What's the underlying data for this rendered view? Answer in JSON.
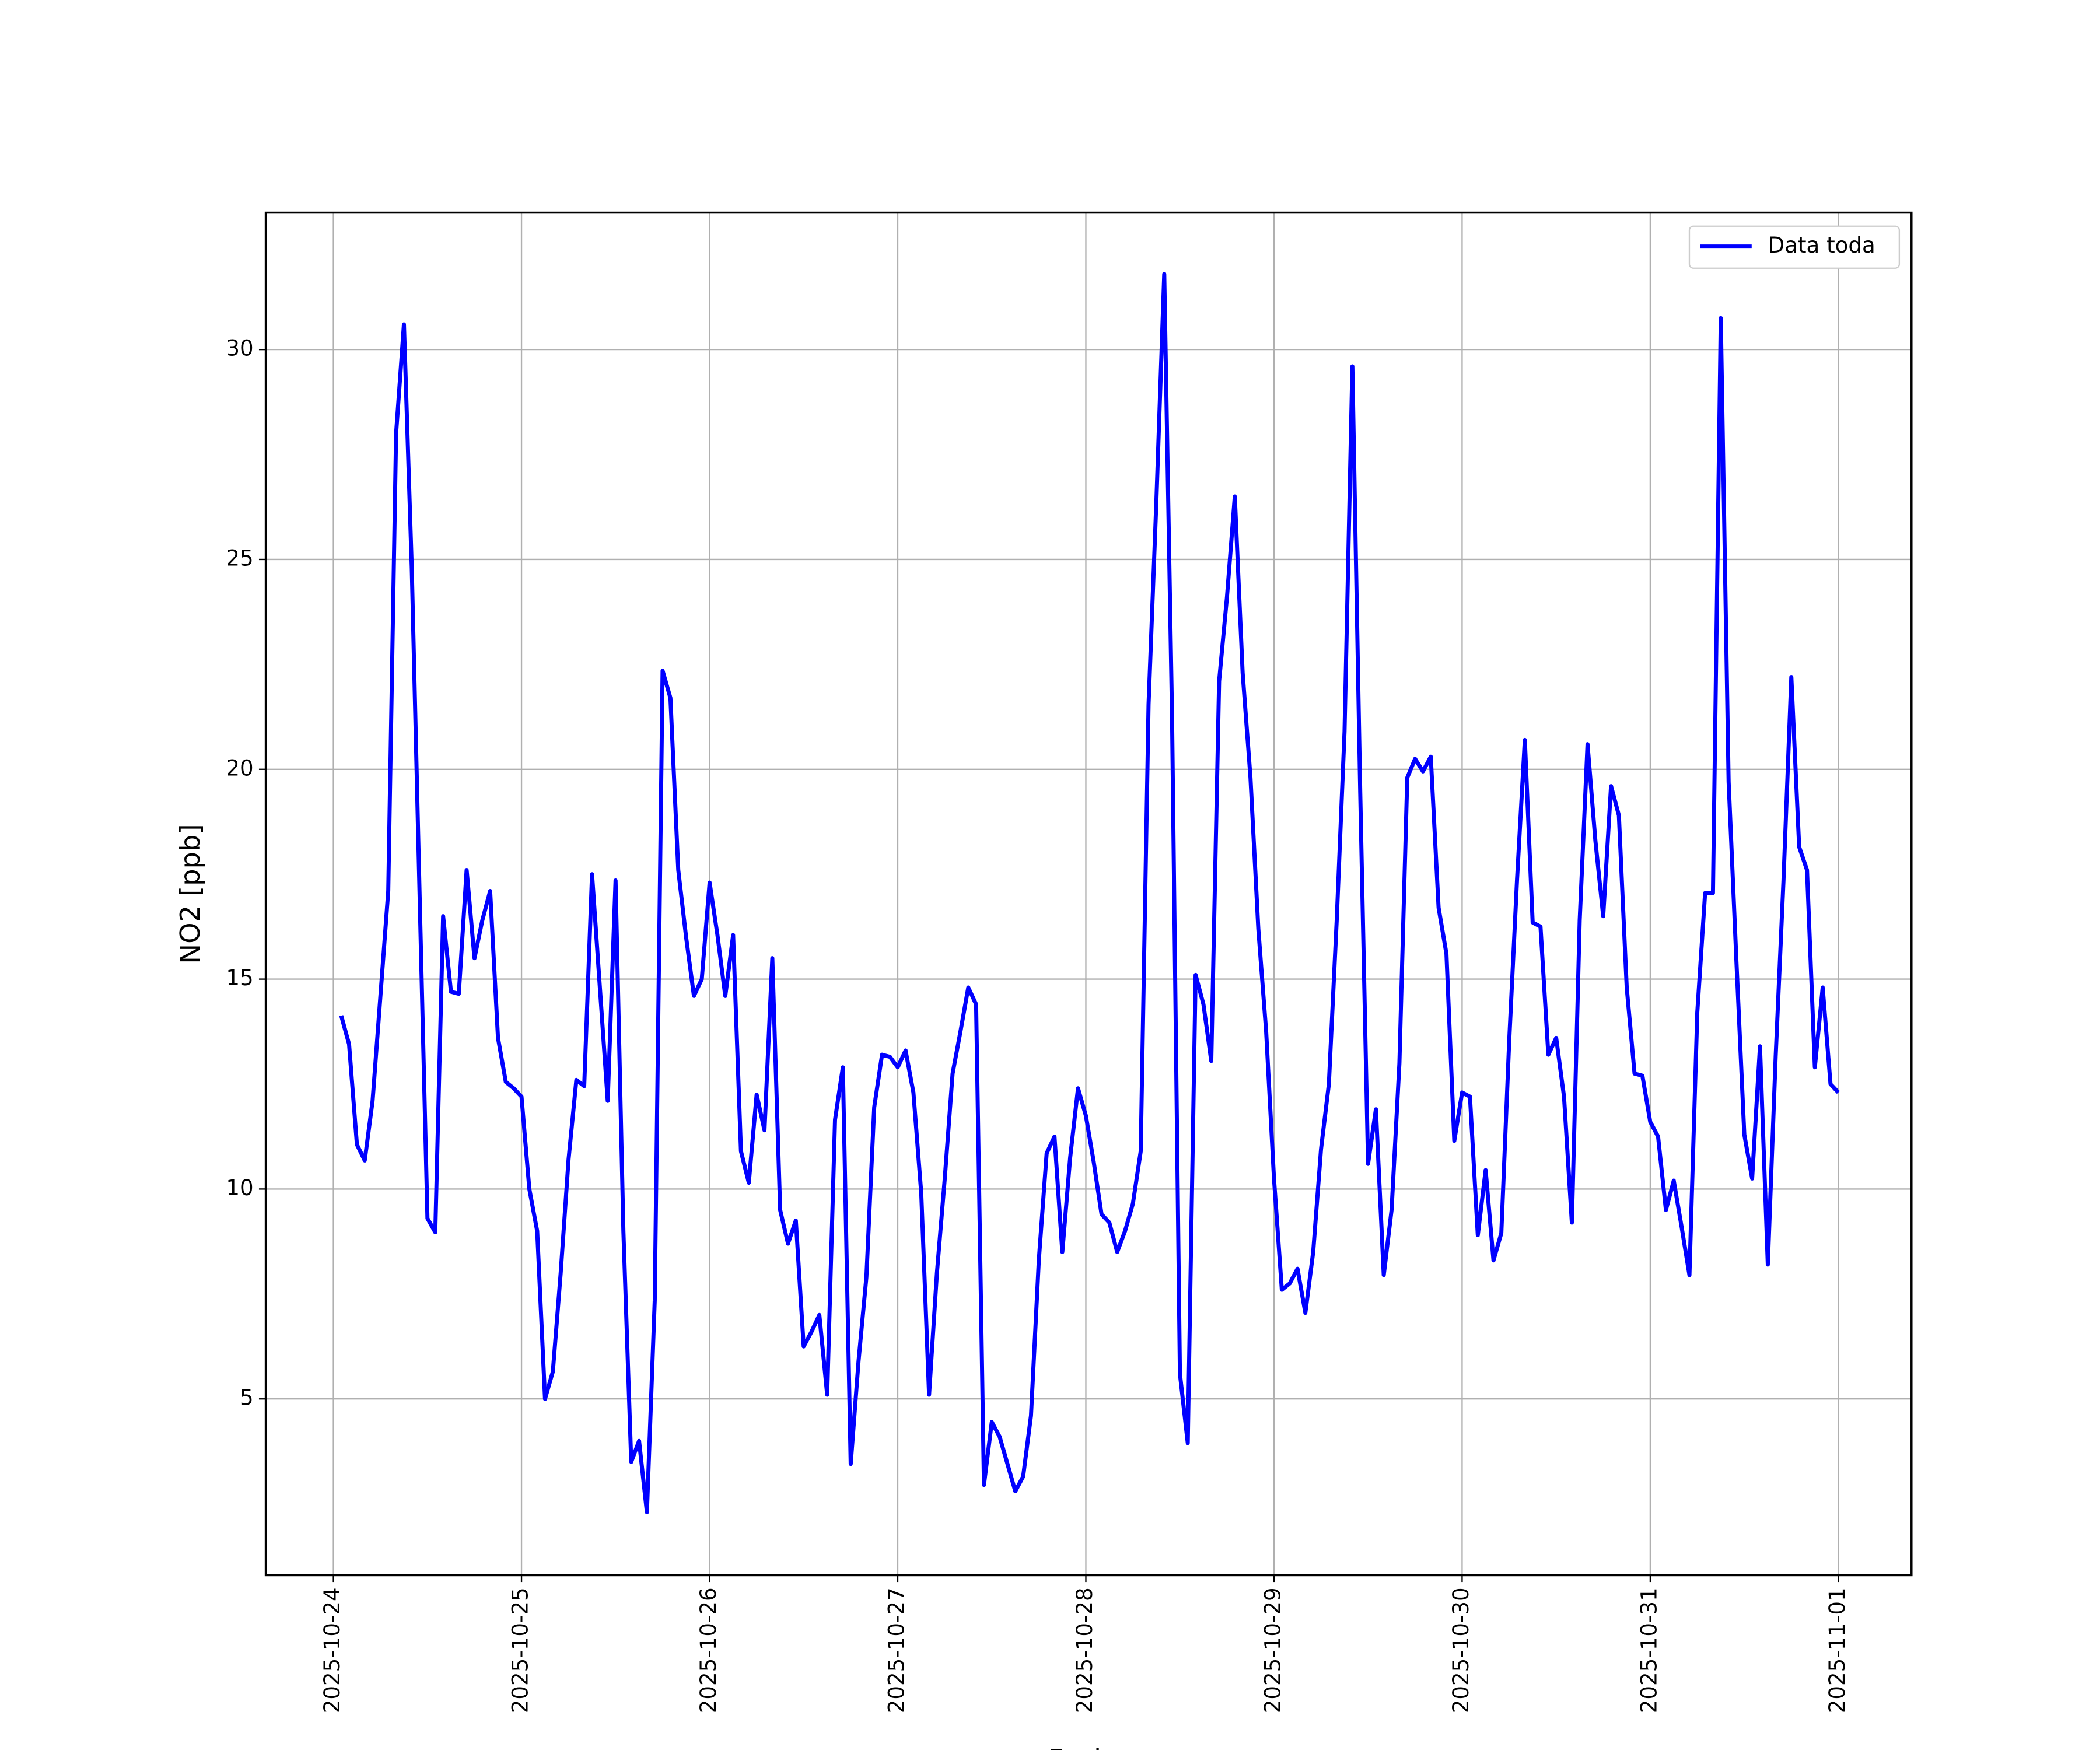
{
  "chart_data": {
    "type": "line",
    "xlabel": "Fecha",
    "ylabel": "NO2 [ppb]",
    "x": [
      "2025-10-24 01:00",
      "2025-10-24 02:00",
      "2025-10-24 03:00",
      "2025-10-24 04:00",
      "2025-10-24 05:00",
      "2025-10-24 06:00",
      "2025-10-24 07:00",
      "2025-10-24 08:00",
      "2025-10-24 09:00",
      "2025-10-24 10:00",
      "2025-10-24 11:00",
      "2025-10-24 12:00",
      "2025-10-24 13:00",
      "2025-10-24 14:00",
      "2025-10-24 15:00",
      "2025-10-24 16:00",
      "2025-10-24 17:00",
      "2025-10-24 18:00",
      "2025-10-24 19:00",
      "2025-10-24 20:00",
      "2025-10-24 21:00",
      "2025-10-24 22:00",
      "2025-10-24 23:00",
      "2025-10-25 00:00",
      "2025-10-25 01:00",
      "2025-10-25 02:00",
      "2025-10-25 03:00",
      "2025-10-25 04:00",
      "2025-10-25 05:00",
      "2025-10-25 06:00",
      "2025-10-25 07:00",
      "2025-10-25 08:00",
      "2025-10-25 09:00",
      "2025-10-25 10:00",
      "2025-10-25 11:00",
      "2025-10-25 12:00",
      "2025-10-25 13:00",
      "2025-10-25 14:00",
      "2025-10-25 15:00",
      "2025-10-25 16:00",
      "2025-10-25 17:00",
      "2025-10-25 18:00",
      "2025-10-25 19:00",
      "2025-10-25 20:00",
      "2025-10-25 21:00",
      "2025-10-25 22:00",
      "2025-10-25 23:00",
      "2025-10-26 00:00",
      "2025-10-26 01:00",
      "2025-10-26 02:00",
      "2025-10-26 03:00",
      "2025-10-26 04:00",
      "2025-10-26 05:00",
      "2025-10-26 06:00",
      "2025-10-26 07:00",
      "2025-10-26 08:00",
      "2025-10-26 09:00",
      "2025-10-26 10:00",
      "2025-10-26 11:00",
      "2025-10-26 12:00",
      "2025-10-26 13:00",
      "2025-10-26 14:00",
      "2025-10-26 15:00",
      "2025-10-26 16:00",
      "2025-10-26 17:00",
      "2025-10-26 18:00",
      "2025-10-26 19:00",
      "2025-10-26 20:00",
      "2025-10-26 21:00",
      "2025-10-26 22:00",
      "2025-10-26 23:00",
      "2025-10-27 00:00",
      "2025-10-27 01:00",
      "2025-10-27 02:00",
      "2025-10-27 03:00",
      "2025-10-27 04:00",
      "2025-10-27 05:00",
      "2025-10-27 06:00",
      "2025-10-27 07:00",
      "2025-10-27 08:00",
      "2025-10-27 09:00",
      "2025-10-27 10:00",
      "2025-10-27 11:00",
      "2025-10-27 12:00",
      "2025-10-27 13:00",
      "2025-10-27 14:00",
      "2025-10-27 15:00",
      "2025-10-27 16:00",
      "2025-10-27 17:00",
      "2025-10-27 18:00",
      "2025-10-27 19:00",
      "2025-10-27 20:00",
      "2025-10-27 21:00",
      "2025-10-27 22:00",
      "2025-10-27 23:00",
      "2025-10-28 00:00",
      "2025-10-28 01:00",
      "2025-10-28 02:00",
      "2025-10-28 03:00",
      "2025-10-28 04:00",
      "2025-10-28 05:00",
      "2025-10-28 06:00",
      "2025-10-28 07:00",
      "2025-10-28 08:00",
      "2025-10-28 09:00",
      "2025-10-28 10:00",
      "2025-10-28 11:00",
      "2025-10-28 12:00",
      "2025-10-28 13:00",
      "2025-10-28 14:00",
      "2025-10-28 15:00",
      "2025-10-28 16:00",
      "2025-10-28 17:00",
      "2025-10-28 18:00",
      "2025-10-28 19:00",
      "2025-10-28 20:00",
      "2025-10-28 21:00",
      "2025-10-28 22:00",
      "2025-10-28 23:00",
      "2025-10-29 00:00",
      "2025-10-29 01:00",
      "2025-10-29 02:00",
      "2025-10-29 03:00",
      "2025-10-29 04:00",
      "2025-10-29 05:00",
      "2025-10-29 06:00",
      "2025-10-29 07:00",
      "2025-10-29 08:00",
      "2025-10-29 09:00",
      "2025-10-29 10:00",
      "2025-10-29 11:00",
      "2025-10-29 12:00",
      "2025-10-29 13:00",
      "2025-10-29 14:00",
      "2025-10-29 15:00",
      "2025-10-29 16:00",
      "2025-10-29 17:00",
      "2025-10-29 18:00",
      "2025-10-29 19:00",
      "2025-10-29 20:00",
      "2025-10-29 21:00",
      "2025-10-29 22:00",
      "2025-10-29 23:00",
      "2025-10-30 00:00",
      "2025-10-30 01:00",
      "2025-10-30 02:00",
      "2025-10-30 03:00",
      "2025-10-30 04:00",
      "2025-10-30 05:00",
      "2025-10-30 06:00",
      "2025-10-30 07:00",
      "2025-10-30 08:00",
      "2025-10-30 09:00",
      "2025-10-30 10:00",
      "2025-10-30 11:00",
      "2025-10-30 12:00",
      "2025-10-30 13:00",
      "2025-10-30 14:00",
      "2025-10-30 15:00",
      "2025-10-30 16:00",
      "2025-10-30 17:00",
      "2025-10-30 18:00",
      "2025-10-30 19:00",
      "2025-10-30 20:00",
      "2025-10-30 21:00",
      "2025-10-30 22:00",
      "2025-10-30 23:00",
      "2025-10-31 00:00",
      "2025-10-31 01:00",
      "2025-10-31 02:00",
      "2025-10-31 03:00",
      "2025-10-31 04:00",
      "2025-10-31 05:00",
      "2025-10-31 06:00",
      "2025-10-31 07:00",
      "2025-10-31 08:00",
      "2025-10-31 09:00",
      "2025-10-31 10:00",
      "2025-10-31 11:00",
      "2025-10-31 12:00",
      "2025-10-31 13:00",
      "2025-10-31 14:00",
      "2025-10-31 15:00",
      "2025-10-31 16:00",
      "2025-10-31 17:00",
      "2025-10-31 18:00",
      "2025-10-31 19:00",
      "2025-10-31 20:00",
      "2025-10-31 21:00",
      "2025-10-31 22:00",
      "2025-10-31 23:00",
      "2025-11-01 00:00"
    ],
    "series": [
      {
        "name": "Data toda",
        "color": "#0000ff",
        "values": [
          14.13,
          13.45,
          11.06,
          10.68,
          12.1,
          14.6,
          17.1,
          28.0,
          30.6,
          24.8,
          17.0,
          9.3,
          8.97,
          16.5,
          14.7,
          14.65,
          17.6,
          15.5,
          16.4,
          17.1,
          13.6,
          12.55,
          12.4,
          12.2,
          10.0,
          9.0,
          5.0,
          5.65,
          8.0,
          10.7,
          12.6,
          12.45,
          17.5,
          14.8,
          12.1,
          17.35,
          9.0,
          3.5,
          4.0,
          2.3,
          7.35,
          22.35,
          21.7,
          17.6,
          16.0,
          14.6,
          15.0,
          17.3,
          16.05,
          14.6,
          16.05,
          10.9,
          10.15,
          12.25,
          11.4,
          15.5,
          9.5,
          8.7,
          9.25,
          6.25,
          6.6,
          7.0,
          5.1,
          11.65,
          12.9,
          3.45,
          5.9,
          7.9,
          11.95,
          13.2,
          13.15,
          12.9,
          13.3,
          12.3,
          9.9,
          5.1,
          8.0,
          10.25,
          12.75,
          13.75,
          14.8,
          14.4,
          2.95,
          4.45,
          4.1,
          3.45,
          2.8,
          3.15,
          4.6,
          8.3,
          10.85,
          11.25,
          8.5,
          10.75,
          12.4,
          11.75,
          10.65,
          9.4,
          9.2,
          8.5,
          9.0,
          9.65,
          10.9,
          21.55,
          26.4,
          31.8,
          21.2,
          5.6,
          3.95,
          15.1,
          14.4,
          13.05,
          22.1,
          24.1,
          26.5,
          22.3,
          19.8,
          16.2,
          13.75,
          10.25,
          7.6,
          7.75,
          8.1,
          7.05,
          8.5,
          10.95,
          12.5,
          16.4,
          20.9,
          29.6,
          19.45,
          10.6,
          11.9,
          7.95,
          9.5,
          13.0,
          19.8,
          20.25,
          19.95,
          20.3,
          16.7,
          15.6,
          11.15,
          12.3,
          12.2,
          8.9,
          10.45,
          8.3,
          8.95,
          13.5,
          17.35,
          20.7,
          16.35,
          16.25,
          13.2,
          13.6,
          12.2,
          9.2,
          16.4,
          20.6,
          18.3,
          16.5,
          19.6,
          18.9,
          14.8,
          12.75,
          12.7,
          11.6,
          11.25,
          9.5,
          10.2,
          9.1,
          7.95,
          14.2,
          17.05,
          17.05,
          30.75,
          19.7,
          15.4,
          11.3,
          10.25,
          13.4,
          8.2,
          13.15,
          17.35,
          22.2,
          18.15,
          17.6,
          12.9,
          14.8,
          12.5,
          12.3
        ]
      }
    ],
    "xlim": [
      "2025-10-23 15:22",
      "2025-11-01 09:20"
    ],
    "xticks": [
      "2025-10-24",
      "2025-10-25",
      "2025-10-26",
      "2025-10-27",
      "2025-10-28",
      "2025-10-29",
      "2025-10-30",
      "2025-10-31",
      "2025-11-01"
    ],
    "ylim": [
      0.8,
      33.26
    ],
    "yticks": [
      5,
      10,
      15,
      20,
      25,
      30
    ],
    "grid": true,
    "legend": "upper right"
  }
}
